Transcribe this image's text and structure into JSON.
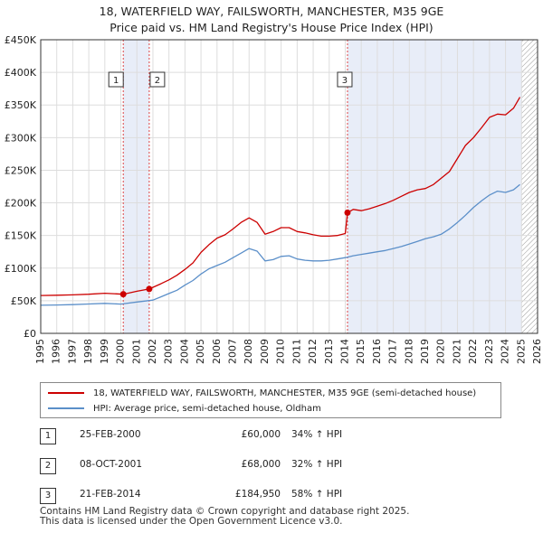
{
  "title_line1": "18, WATERFIELD WAY, FAILSWORTH, MANCHESTER, M35 9GE",
  "title_line2": "Price paid vs. HM Land Registry's House Price Index (HPI)",
  "colors": {
    "property": "#cc0000",
    "hpi": "#5b8fc9",
    "shade": "#e8edf8",
    "grid": "#dddddd"
  },
  "chart_data": {
    "type": "line",
    "title": "18, WATERFIELD WAY, FAILSWORTH, MANCHESTER, M35 9GE — Price paid vs. HM Land Registry's House Price Index (HPI)",
    "xlim": [
      1995,
      2026
    ],
    "ylim": [
      0,
      450000
    ],
    "y_ticks": [
      0,
      50000,
      100000,
      150000,
      200000,
      250000,
      300000,
      350000,
      400000,
      450000
    ],
    "y_tick_labels": [
      "£0",
      "£50K",
      "£100K",
      "£150K",
      "£200K",
      "£250K",
      "£300K",
      "£350K",
      "£400K",
      "£450K"
    ],
    "x_ticks": [
      1995,
      1996,
      1997,
      1998,
      1999,
      2000,
      2001,
      2002,
      2003,
      2004,
      2005,
      2006,
      2007,
      2008,
      2009,
      2010,
      2011,
      2012,
      2013,
      2014,
      2015,
      2016,
      2017,
      2018,
      2019,
      2020,
      2021,
      2022,
      2023,
      2024,
      2025,
      2026
    ],
    "x_tick_labels": [
      "1995",
      "1996",
      "1997",
      "1998",
      "1999",
      "2000",
      "2001",
      "2002",
      "2003",
      "2004",
      "2005",
      "2006",
      "2007",
      "2008",
      "2009",
      "2010",
      "2011",
      "2012",
      "2013",
      "2014",
      "2015",
      "2016",
      "2017",
      "2018",
      "2019",
      "2020",
      "2021",
      "2022",
      "2023",
      "2024",
      "2025",
      "2026"
    ],
    "shaded_periods": [
      [
        2000.15,
        2001.77
      ],
      [
        2014.14,
        2025.0
      ]
    ],
    "hatch_from": 2025.0,
    "series": [
      {
        "name": "18, WATERFIELD WAY, FAILSWORTH, MANCHESTER, M35 9GE (semi-detached house)",
        "x": [
          1995,
          1996,
          1997,
          1998,
          1999,
          2000.15,
          2001,
          2001.77,
          2002.5,
          2003,
          2003.5,
          2004,
          2004.5,
          2005,
          2005.5,
          2006,
          2006.5,
          2007,
          2007.5,
          2008,
          2008.5,
          2009,
          2009.5,
          2010,
          2010.5,
          2011,
          2011.5,
          2012,
          2012.5,
          2013,
          2013.5,
          2014.0,
          2014.14,
          2014.5,
          2015,
          2015.5,
          2016,
          2016.5,
          2017,
          2017.5,
          2018,
          2018.5,
          2019,
          2019.5,
          2020,
          2020.5,
          2021,
          2021.5,
          2022,
          2022.5,
          2023,
          2023.5,
          2024,
          2024.5,
          2024.9
        ],
        "values": [
          58000,
          58500,
          59000,
          60000,
          61500,
          60000,
          64500,
          68000,
          76000,
          82000,
          89000,
          98000,
          108000,
          124000,
          136000,
          146000,
          151000,
          160000,
          170000,
          177000,
          170000,
          152000,
          156000,
          162000,
          162000,
          156000,
          154000,
          151000,
          149000,
          149000,
          150000,
          153000,
          184950,
          190000,
          188000,
          191000,
          195000,
          199000,
          204000,
          210000,
          216000,
          220000,
          222000,
          228000,
          238000,
          248000,
          268000,
          288000,
          300000,
          315000,
          331000,
          336000,
          335000,
          345000,
          362000
        ]
      },
      {
        "name": "HPI: Average price, semi-detached house, Oldham",
        "x": [
          1995,
          1996,
          1997,
          1998,
          1999,
          2000,
          2001,
          2002,
          2002.5,
          2003,
          2003.5,
          2004,
          2004.5,
          2005,
          2005.5,
          2006,
          2006.5,
          2007,
          2007.5,
          2008,
          2008.5,
          2009,
          2009.5,
          2010,
          2010.5,
          2011,
          2011.5,
          2012,
          2012.5,
          2013,
          2013.5,
          2014,
          2014.5,
          2015,
          2015.5,
          2016,
          2016.5,
          2017,
          2017.5,
          2018,
          2018.5,
          2019,
          2019.5,
          2020,
          2020.5,
          2021,
          2021.5,
          2022,
          2022.5,
          2023,
          2023.5,
          2024,
          2024.5,
          2024.9
        ],
        "values": [
          43000,
          43500,
          44000,
          45000,
          46000,
          44800,
          48000,
          51000,
          56000,
          61000,
          66000,
          74000,
          81000,
          91000,
          99000,
          104000,
          109000,
          116000,
          123000,
          130000,
          126000,
          111000,
          113000,
          118000,
          119000,
          114000,
          112000,
          111000,
          111000,
          112000,
          114000,
          116000,
          119000,
          121000,
          123000,
          125000,
          127000,
          130000,
          133000,
          137000,
          141000,
          145000,
          148000,
          152000,
          160000,
          170000,
          181000,
          193000,
          203000,
          212000,
          218000,
          216000,
          220000,
          228000
        ]
      }
    ],
    "annotations": [
      {
        "label": "1",
        "x": 2000.15,
        "y": 60000
      },
      {
        "label": "2",
        "x": 2001.77,
        "y": 68000
      },
      {
        "label": "3",
        "x": 2014.14,
        "y": 184950
      }
    ]
  },
  "legend": [
    {
      "label": "18, WATERFIELD WAY, FAILSWORTH, MANCHESTER, M35 9GE (semi-detached house)"
    },
    {
      "label": "HPI: Average price, semi-detached house, Oldham"
    }
  ],
  "sales": [
    {
      "num": "1",
      "date": "25-FEB-2000",
      "price": "£60,000",
      "hpi": "34% ↑ HPI"
    },
    {
      "num": "2",
      "date": "08-OCT-2001",
      "price": "£68,000",
      "hpi": "32% ↑ HPI"
    },
    {
      "num": "3",
      "date": "21-FEB-2014",
      "price": "£184,950",
      "hpi": "58% ↑ HPI"
    }
  ],
  "footer_line1": "Contains HM Land Registry data © Crown copyright and database right 2025.",
  "footer_line2": "This data is licensed under the Open Government Licence v3.0."
}
